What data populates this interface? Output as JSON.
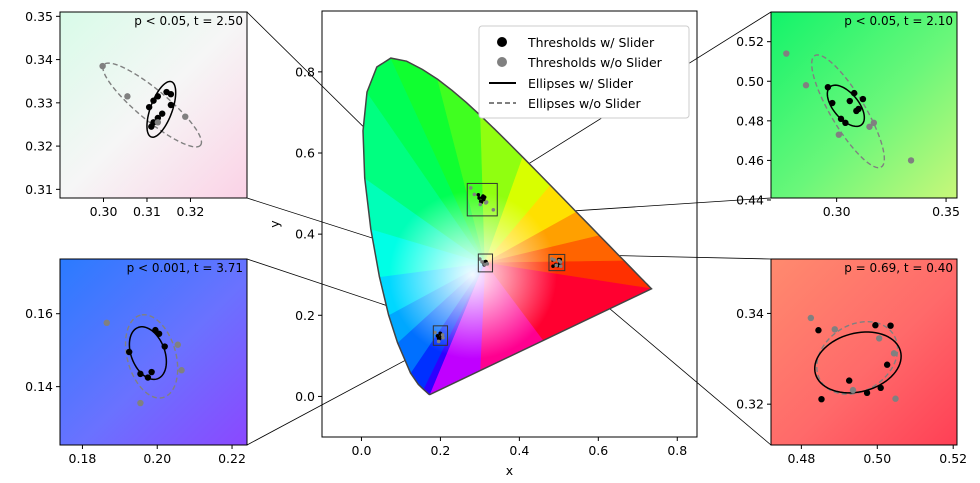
{
  "chart_data": [
    {
      "id": "main",
      "type": "scatter",
      "title": "",
      "xlabel": "x",
      "ylabel": "y",
      "xlim": [
        -0.1,
        0.85
      ],
      "ylim": [
        -0.1,
        0.95
      ],
      "xticks": [
        "0.0",
        "0.2",
        "0.4",
        "0.6",
        "0.8"
      ],
      "yticks": [
        "0.0",
        "0.2",
        "0.4",
        "0.6",
        "0.8"
      ],
      "background": "CIE 1931 chromaticity diagram (gamut colored)",
      "legend": {
        "placement": "top-right",
        "entries": [
          "Thresholds w/ Slider",
          "Thresholds w/o Slider",
          "Ellipses w/ Slider",
          "Ellipses w/o Slider"
        ]
      },
      "zoom_boxes": [
        {
          "center": [
            0.2,
            0.15
          ],
          "half": [
            0.018,
            0.024
          ]
        },
        {
          "center": [
            0.314,
            0.329
          ],
          "half": [
            0.018,
            0.022
          ]
        },
        {
          "center": [
            0.306,
            0.485
          ],
          "half": [
            0.038,
            0.04
          ]
        },
        {
          "center": [
            0.495,
            0.33
          ],
          "half": [
            0.02,
            0.02
          ]
        }
      ]
    },
    {
      "id": "top-left",
      "type": "scatter",
      "annotation": "p < 0.05, t = 2.50",
      "xlim": [
        0.29,
        0.333
      ],
      "ylim": [
        0.308,
        0.351
      ],
      "xticks": [
        "0.30",
        "0.31",
        "0.32"
      ],
      "yticks": [
        "0.31",
        "0.32",
        "0.33",
        "0.34",
        "0.35"
      ],
      "series": [
        {
          "name": "Thresholds w/ Slider",
          "marker": "dot",
          "color": "#000000",
          "points": [
            [
              0.311,
              0.3245
            ],
            [
              0.3115,
              0.3255
            ],
            [
              0.3125,
              0.3265
            ],
            [
              0.3105,
              0.329
            ],
            [
              0.3125,
              0.3315
            ],
            [
              0.3145,
              0.3325
            ],
            [
              0.3155,
              0.3295
            ],
            [
              0.3135,
              0.3275
            ],
            [
              0.3155,
              0.332
            ],
            [
              0.3115,
              0.3305
            ]
          ]
        },
        {
          "name": "Thresholds w/o Slider",
          "marker": "dot",
          "color": "#808080",
          "points": [
            [
              0.2998,
              0.3385
            ],
            [
              0.3055,
              0.3315
            ],
            [
              0.3188,
              0.3268
            ],
            [
              0.3125,
              0.3255
            ]
          ]
        },
        {
          "name": "Ellipses w/ Slider",
          "style": "solid",
          "color": "#000000",
          "ellipse": {
            "center": [
              0.3133,
              0.3285
            ],
            "semi_major": 0.0068,
            "semi_minor": 0.0025,
            "angle_deg": 70
          }
        },
        {
          "name": "Ellipses w/o Slider",
          "style": "dashed",
          "color": "#808080",
          "ellipse": {
            "center": [
              0.3112,
              0.3295
            ],
            "semi_major": 0.0145,
            "semi_minor": 0.0035,
            "angle_deg": -40
          }
        }
      ]
    },
    {
      "id": "top-right",
      "type": "scatter",
      "annotation": "p < 0.05, t = 2.10",
      "xlim": [
        0.27,
        0.355
      ],
      "ylim": [
        0.441,
        0.535
      ],
      "xticks": [
        "0.30",
        "0.35"
      ],
      "yticks": [
        "0.44",
        "0.46",
        "0.48",
        "0.50",
        "0.52"
      ],
      "series": [
        {
          "name": "Thresholds w/ Slider",
          "marker": "dot",
          "color": "#000000",
          "points": [
            [
              0.296,
              0.497
            ],
            [
              0.298,
              0.489
            ],
            [
              0.302,
              0.481
            ],
            [
              0.304,
              0.479
            ],
            [
              0.308,
              0.494
            ],
            [
              0.309,
              0.485
            ],
            [
              0.31,
              0.486
            ],
            [
              0.312,
              0.491
            ],
            [
              0.306,
              0.49
            ]
          ]
        },
        {
          "name": "Thresholds w/o Slider",
          "marker": "dot",
          "color": "#808080",
          "points": [
            [
              0.277,
              0.514
            ],
            [
              0.286,
              0.498
            ],
            [
              0.301,
              0.473
            ],
            [
              0.315,
              0.477
            ],
            [
              0.334,
              0.46
            ],
            [
              0.317,
              0.479
            ]
          ]
        },
        {
          "name": "Ellipses w/ Slider",
          "style": "solid",
          "color": "#000000",
          "ellipse": {
            "center": [
              0.3042,
              0.4876
            ],
            "semi_major": 0.012,
            "semi_minor": 0.006,
            "angle_deg": -55
          }
        },
        {
          "name": "Ellipses w/o Slider",
          "style": "dashed",
          "color": "#808080",
          "ellipse": {
            "center": [
              0.3052,
              0.4848
            ],
            "semi_major": 0.032,
            "semi_minor": 0.008,
            "angle_deg": -62
          }
        }
      ]
    },
    {
      "id": "bottom-left",
      "type": "scatter",
      "annotation": "p < 0.001, t = 3.71",
      "xlim": [
        0.174,
        0.224
      ],
      "ylim": [
        0.124,
        0.175
      ],
      "xticks": [
        "0.18",
        "0.20",
        "0.22"
      ],
      "yticks": [
        "0.14",
        "0.16"
      ],
      "series": [
        {
          "name": "Thresholds w/ Slider",
          "marker": "dot",
          "color": "#000000",
          "points": [
            [
              0.1925,
              0.1495
            ],
            [
              0.1955,
              0.1435
            ],
            [
              0.1975,
              0.1425
            ],
            [
              0.1995,
              0.1555
            ],
            [
              0.2005,
              0.1545
            ],
            [
              0.1985,
              0.144
            ],
            [
              0.202,
              0.151
            ]
          ]
        },
        {
          "name": "Thresholds w/o Slider",
          "marker": "dot",
          "color": "#808080",
          "points": [
            [
              0.1865,
              0.1575
            ],
            [
              0.1955,
              0.1355
            ],
            [
              0.2055,
              0.1515
            ],
            [
              0.2065,
              0.1445
            ]
          ]
        },
        {
          "name": "Ellipses w/ Slider",
          "style": "solid",
          "color": "#000000",
          "ellipse": {
            "center": [
              0.1975,
              0.1492
            ],
            "semi_major": 0.0075,
            "semi_minor": 0.0045,
            "angle_deg": 110
          }
        },
        {
          "name": "Ellipses w/o Slider",
          "style": "dashed",
          "color": "#808080",
          "ellipse": {
            "center": [
              0.1985,
              0.1483
            ],
            "semi_major": 0.0117,
            "semi_minor": 0.0065,
            "angle_deg": 105
          }
        }
      ]
    },
    {
      "id": "bottom-right",
      "type": "scatter",
      "annotation": "p = 0.69, t = 0.40",
      "xlim": [
        0.472,
        0.521
      ],
      "ylim": [
        0.311,
        0.352
      ],
      "xticks": [
        "0.48",
        "0.50",
        "0.52"
      ],
      "yticks": [
        "0.32",
        "0.34"
      ],
      "series": [
        {
          "name": "Thresholds w/ Slider",
          "marker": "dot",
          "color": "#000000",
          "points": [
            [
              0.4845,
              0.3363
            ],
            [
              0.4853,
              0.3211
            ],
            [
              0.4926,
              0.3252
            ],
            [
              0.4995,
              0.3374
            ],
            [
              0.5035,
              0.3373
            ],
            [
              0.5026,
              0.3287
            ],
            [
              0.5009,
              0.3236
            ],
            [
              0.4973,
              0.3225
            ]
          ]
        },
        {
          "name": "Thresholds w/o Slider",
          "marker": "dot",
          "color": "#808080",
          "points": [
            [
              0.4825,
              0.339
            ],
            [
              0.4888,
              0.3365
            ],
            [
              0.4936,
              0.3231
            ],
            [
              0.5048,
              0.3212
            ],
            [
              0.5005,
              0.3345
            ],
            [
              0.5044,
              0.3312
            ]
          ]
        },
        {
          "name": "Ellipses w/ Slider",
          "style": "solid",
          "color": "#000000",
          "ellipse": {
            "center": [
              0.4949,
              0.3292
            ],
            "semi_major": 0.0115,
            "semi_minor": 0.0065,
            "angle_deg": 10
          }
        },
        {
          "name": "Ellipses w/o Slider",
          "style": "dashed",
          "color": "#808080",
          "ellipse": {
            "center": [
              0.4947,
              0.3302
            ],
            "semi_major": 0.011,
            "semi_minor": 0.0075,
            "angle_deg": 20
          }
        }
      ]
    }
  ],
  "legend": {
    "entries": [
      {
        "label": "Thresholds w/ Slider",
        "symbol": "dot",
        "color": "#000000"
      },
      {
        "label": "Thresholds w/o Slider",
        "symbol": "dot",
        "color": "#808080"
      },
      {
        "label": "Ellipses w/ Slider",
        "symbol": "solid-line",
        "color": "#000000"
      },
      {
        "label": "Ellipses w/o Slider",
        "symbol": "dashed-line",
        "color": "#808080"
      }
    ]
  }
}
